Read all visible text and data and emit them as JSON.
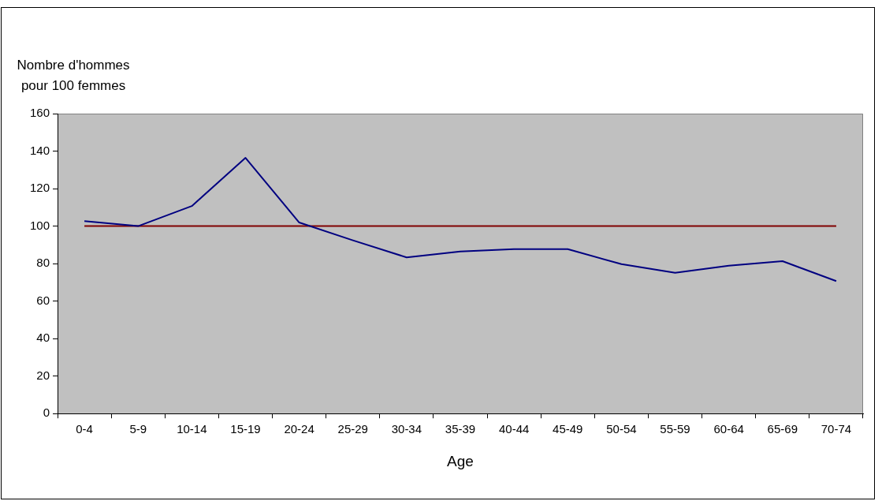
{
  "chart_data": {
    "type": "line",
    "xlabel": "Age",
    "ylabel": "Nombre d'hommes\npour 100 femmes",
    "categories": [
      "0-4",
      "5-9",
      "10-14",
      "15-19",
      "20-24",
      "25-29",
      "30-34",
      "35-39",
      "40-44",
      "45-49",
      "50-54",
      "55-59",
      "60-64",
      "65-69",
      "70-74"
    ],
    "series": [
      {
        "color": "#000080",
        "values": [
          102.7,
          100,
          110.7,
          136.4,
          101.9,
          92.4,
          83.3,
          86.5,
          87.7,
          87.7,
          79.7,
          75.1,
          78.9,
          81.3,
          70.7
        ]
      },
      {
        "color": "#800000",
        "values": [
          100,
          100,
          100,
          100,
          100,
          100,
          100,
          100,
          100,
          100,
          100,
          100,
          100,
          100,
          100
        ]
      }
    ],
    "ylim": [
      0,
      160
    ],
    "yticks": [
      0,
      20,
      40,
      60,
      80,
      100,
      120,
      140,
      160
    ],
    "grid": false,
    "legend": false,
    "marker": "none",
    "line_style": "solid"
  }
}
